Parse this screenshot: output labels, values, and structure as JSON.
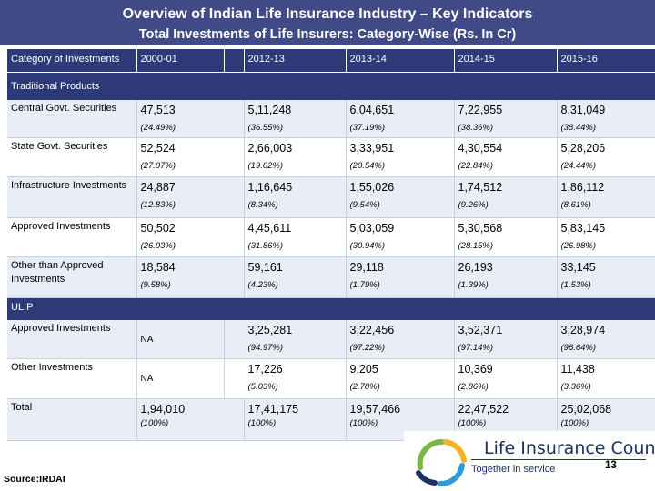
{
  "title": "Overview of Indian Life Insurance Industry – Key Indicators",
  "subtitle": "Total Investments of Life Insurers: Category-Wise (Rs. In Cr)",
  "columns": [
    "Category of Investments",
    "2000-01",
    "2012-13",
    "2013-14",
    "2014-15",
    "2015-16"
  ],
  "sections": {
    "traditional": "Traditional Products",
    "ulip": "ULIP"
  },
  "rows": {
    "central": {
      "label": "Central Govt. Securities",
      "values": [
        "47,513",
        "5,11,248",
        "6,04,651",
        "7,22,955",
        "8,31,049"
      ],
      "shares": [
        "(24.49%)",
        "(36.55%)",
        "(37.19%)",
        "(38.36%)",
        "(38.44%)"
      ]
    },
    "state": {
      "label": "State Govt. Securities",
      "values": [
        "52,524",
        "2,66,003",
        "3,33,951",
        "4,30,554",
        "5,28,206"
      ],
      "shares": [
        "(27.07%)",
        "(19.02%)",
        "(20.54%)",
        "(22.84%)",
        "(24.44%)"
      ]
    },
    "infra": {
      "label": "Infrastructure Investments",
      "values": [
        "24,887",
        "1,16,645",
        "1,55,026",
        "1,74,512",
        "1,86,112"
      ],
      "shares": [
        "(12.83%)",
        "(8.34%)",
        "(9.54%)",
        "(9.26%)",
        "(8.61%)"
      ]
    },
    "approved": {
      "label": "Approved Investments",
      "values": [
        "50,502",
        "4,45,611",
        "5,03,059",
        "5,30,568",
        "5,83,145"
      ],
      "shares": [
        "(26.03%)",
        "(31.86%)",
        "(30.94%)",
        "(28.15%)",
        "(26.98%)"
      ]
    },
    "other_approved": {
      "label": "Other than Approved Investments",
      "values": [
        "18,584",
        "59,161",
        "29,118",
        "26,193",
        "33,145"
      ],
      "shares": [
        "(9.58%)",
        "(4.23%)",
        "(1.79%)",
        "(1.39%)",
        "(1.53%)"
      ]
    },
    "ulip_approved": {
      "label": "Approved Investments",
      "na": "NA",
      "values": [
        "3,25,281",
        "3,22,456",
        "3,52,371",
        "3,28,974"
      ],
      "shares": [
        "(94.97%)",
        "(97.22%)",
        "(97.14%)",
        "(96.64%)"
      ]
    },
    "ulip_other": {
      "label": "Other Investments",
      "na": "NA",
      "values": [
        "17,226",
        "9,205",
        "10,369",
        "11,438"
      ],
      "shares": [
        "(5.03%)",
        "(2.78%)",
        "(2.86%)",
        "(3.36%)"
      ]
    },
    "total": {
      "label": "Total",
      "values": [
        "1,94,010",
        "17,41,175",
        "19,57,466",
        "22,47,522",
        "25,02,068"
      ],
      "shares": [
        "(100%)",
        "(100%)",
        "(100%)",
        "(100%)",
        "(100%)"
      ]
    }
  },
  "source": "Source:IRDAI",
  "logo": {
    "name": "Life Insurance Council",
    "tagline": "Together in service"
  },
  "page_number": "13",
  "colors": {
    "banner": "#3f4a86",
    "header": "#2e3a78",
    "band": "#e9edf6",
    "logo_blue": "#1e2f63",
    "logo_green": "#7ab648",
    "logo_gold": "#f0b323",
    "logo_sky": "#2b9bd6"
  }
}
